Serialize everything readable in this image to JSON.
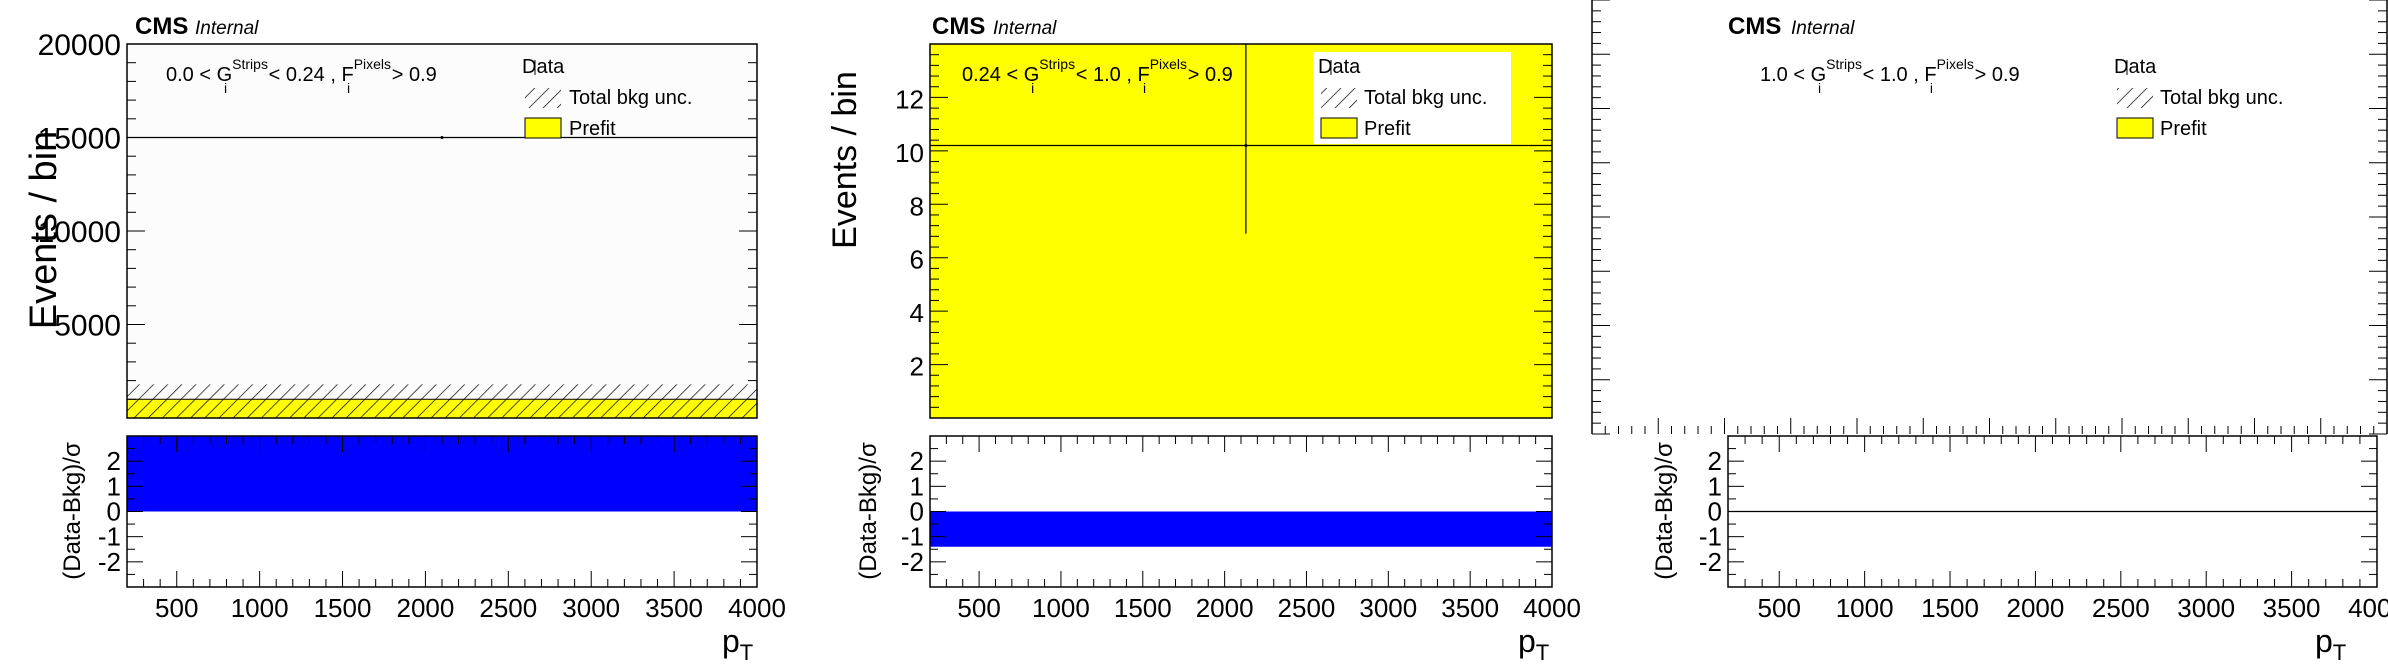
{
  "panels": [
    {
      "cms_label": "CMS",
      "cms_sub": "Internal",
      "region_label": {
        "pre": "0.0 < G",
        "sup1": "Strips",
        "sub1": "i",
        "mid": " < 0.24 , F",
        "sup2": "Pixels",
        "sub2": "i",
        "post": " > 0.9"
      },
      "legend": {
        "data": "Data",
        "unc": "Total bkg unc.",
        "prefit": "Prefit"
      }
    },
    {
      "cms_label": "CMS",
      "cms_sub": "Internal",
      "region_label": {
        "pre": "0.24 < G",
        "sup1": "Strips",
        "sub1": "i",
        "mid": " < 1.0 , F",
        "sup2": "Pixels",
        "sub2": "i",
        "post": " > 0.9"
      },
      "legend": {
        "data": "Data",
        "unc": "Total bkg unc.",
        "prefit": "Prefit"
      }
    },
    {
      "cms_label": "CMS",
      "cms_sub": "Internal",
      "region_label": {
        "pre": "1.0 < G",
        "sup1": "Strips",
        "sub1": "i",
        "mid": " < 1.0 , F",
        "sup2": "Pixels",
        "sub2": "i",
        "post": " > 0.9"
      },
      "legend": {
        "data": "Data",
        "unc": "Total bkg unc.",
        "prefit": "Prefit"
      }
    }
  ],
  "colors": {
    "prefit_fill": "#ffff00",
    "pull_fill": "#0000ff",
    "upper_bg_panel1": "#fcfcfc",
    "axis": "#000000"
  },
  "chart_data": [
    {
      "type": "bar",
      "title": "",
      "xlabel": "p_T",
      "ylabel": "Events / bin",
      "xlim": [
        200,
        4000
      ],
      "ylim": [
        0,
        20000
      ],
      "yticks": [
        5000,
        10000,
        15000,
        20000
      ],
      "xticks": [
        500,
        1000,
        1500,
        2000,
        2500,
        3000,
        3500,
        4000
      ],
      "prefit": {
        "x": [
          200,
          4000
        ],
        "value": 1000
      },
      "bkg_unc": {
        "low": 0,
        "high": 1800
      },
      "data_points": [
        {
          "x": 2100,
          "y": 15000,
          "xerr": [
            200,
            4000
          ]
        }
      ],
      "ratio": {
        "ylabel": "(Data-Bkg)/σ",
        "ylim": [
          -3,
          3
        ],
        "yticks": [
          -2,
          -1,
          0,
          1,
          2
        ],
        "values": [
          3.0
        ]
      },
      "legend_position": "top-right"
    },
    {
      "type": "bar",
      "title": "",
      "xlabel": "p_T",
      "ylabel": "Events / bin",
      "xlim": [
        200,
        4000
      ],
      "ylim": [
        0,
        14
      ],
      "yticks": [
        2,
        4,
        6,
        8,
        10,
        12
      ],
      "xticks": [
        500,
        1000,
        1500,
        2000,
        2500,
        3000,
        3500,
        4000
      ],
      "prefit": {
        "x": [
          200,
          4000
        ],
        "value": 14
      },
      "data_points": [
        {
          "x": 2130,
          "y": 10.2,
          "yerr": [
            3.3,
            3.8
          ],
          "xerr": [
            200,
            4000
          ]
        }
      ],
      "ratio": {
        "ylabel": "(Data-Bkg)/σ",
        "ylim": [
          -3,
          3
        ],
        "yticks": [
          -2,
          -1,
          0,
          1,
          2
        ],
        "values": [
          -1.4
        ]
      },
      "legend_position": "top-right"
    },
    {
      "type": "bar",
      "title": "",
      "xlabel": "p_T",
      "ylabel": "",
      "xlim": [
        200,
        4000
      ],
      "xticks": [
        500,
        1000,
        1500,
        2000,
        2500,
        3000,
        3500,
        4000
      ],
      "data_points": [],
      "ratio": {
        "ylabel": "(Data-Bkg)/σ",
        "ylim": [
          -3,
          3
        ],
        "yticks": [
          -2,
          -1,
          0,
          1,
          2
        ],
        "values": [
          0
        ]
      },
      "legend_position": "top-right"
    }
  ]
}
